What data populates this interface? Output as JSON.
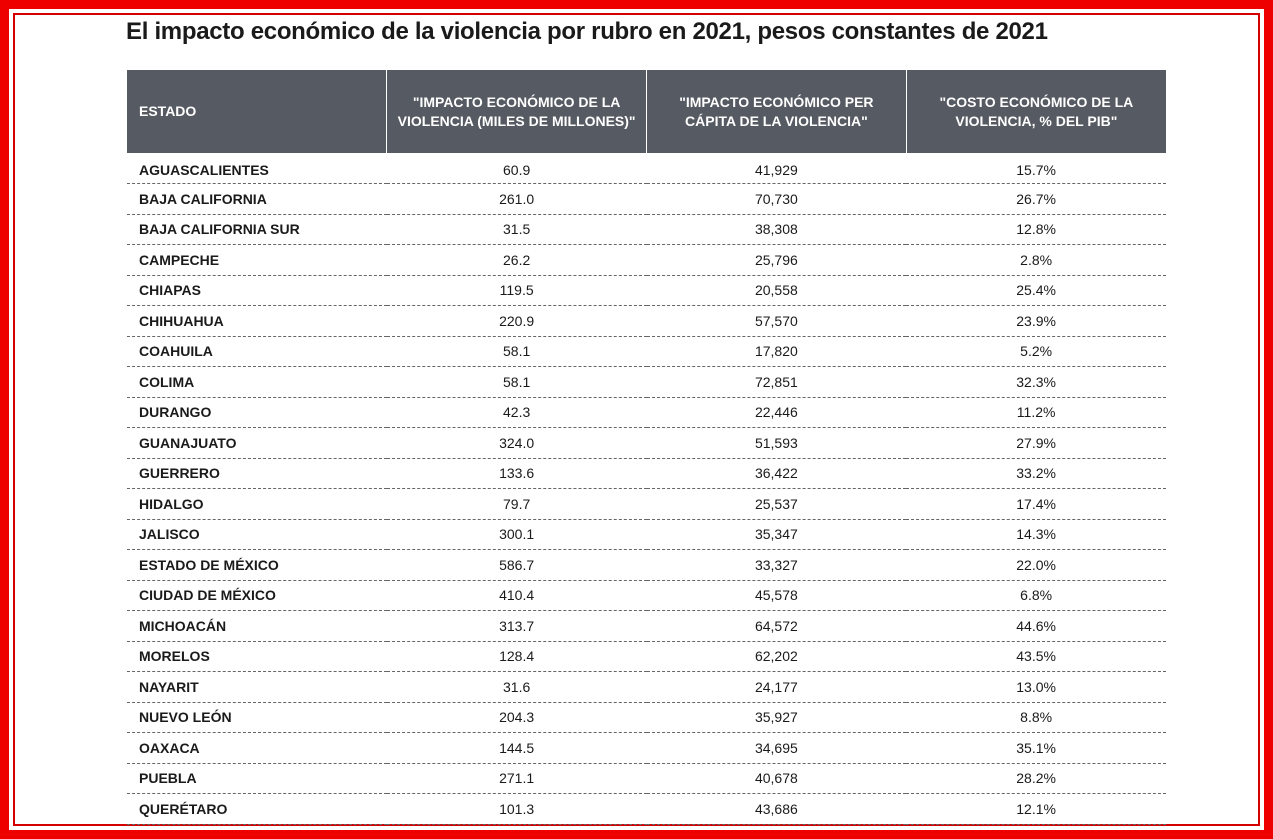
{
  "title": "El impacto económico de la violencia por rubro en 2021, pesos constantes de 2021",
  "colors": {
    "frame": "#ee0000",
    "header_bg": "#565a62",
    "header_text": "#ffffff"
  },
  "table": {
    "headers": [
      "ESTADO",
      "\"IMPACTO ECONÓMICO DE LA VIOLENCIA (MILES DE MILLONES)\"",
      "\"IMPACTO ECONÓMICO PER CÁPITA DE LA VIOLENCIA\"",
      "\"COSTO ECONÓMICO DE LA VIOLENCIA, % DEL PIB\""
    ],
    "rows": [
      [
        "AGUASCALIENTES",
        "60.9",
        "41,929",
        "15.7%"
      ],
      [
        "BAJA CALIFORNIA",
        "261.0",
        "70,730",
        "26.7%"
      ],
      [
        "BAJA CALIFORNIA SUR",
        "31.5",
        "38,308",
        "12.8%"
      ],
      [
        "CAMPECHE",
        "26.2",
        "25,796",
        "2.8%"
      ],
      [
        "CHIAPAS",
        "119.5",
        "20,558",
        "25.4%"
      ],
      [
        "CHIHUAHUA",
        "220.9",
        "57,570",
        "23.9%"
      ],
      [
        "COAHUILA",
        "58.1",
        "17,820",
        "5.2%"
      ],
      [
        "COLIMA",
        "58.1",
        "72,851",
        "32.3%"
      ],
      [
        "DURANGO",
        "42.3",
        "22,446",
        "11.2%"
      ],
      [
        "GUANAJUATO",
        "324.0",
        "51,593",
        "27.9%"
      ],
      [
        "GUERRERO",
        "133.6",
        "36,422",
        "33.2%"
      ],
      [
        "HIDALGO",
        "79.7",
        "25,537",
        "17.4%"
      ],
      [
        "JALISCO",
        "300.1",
        "35,347",
        "14.3%"
      ],
      [
        "ESTADO DE MÉXICO",
        "586.7",
        "33,327",
        "22.0%"
      ],
      [
        "CIUDAD DE MÉXICO",
        "410.4",
        "45,578",
        "6.8%"
      ],
      [
        "MICHOACÁN",
        "313.7",
        "64,572",
        "44.6%"
      ],
      [
        "MORELOS",
        "128.4",
        "62,202",
        "43.5%"
      ],
      [
        "NAYARIT",
        "31.6",
        "24,177",
        "13.0%"
      ],
      [
        "NUEVO LEÓN",
        "204.3",
        "35,927",
        "8.8%"
      ],
      [
        "OAXACA",
        "144.5",
        "34,695",
        "35.1%"
      ],
      [
        "PUEBLA",
        "271.1",
        "40,678",
        "28.2%"
      ],
      [
        "QUERÉTARO",
        "101.3",
        "43,686",
        "12.1%"
      ]
    ]
  }
}
